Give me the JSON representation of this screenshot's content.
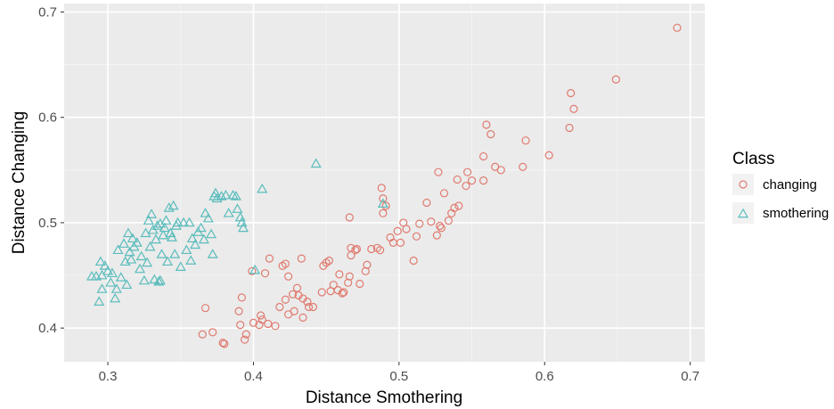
{
  "chart_data": {
    "type": "scatter",
    "xlabel": "Distance Smothering",
    "ylabel": "Distance Changing",
    "xlim": [
      0.27,
      0.71
    ],
    "ylim": [
      0.368,
      0.708
    ],
    "x_ticks": [
      0.3,
      0.4,
      0.5,
      0.6,
      0.7
    ],
    "y_ticks": [
      0.4,
      0.5,
      0.6,
      0.7
    ],
    "x_tick_labels": [
      "0.3",
      "0.4",
      "0.5",
      "0.6",
      "0.7"
    ],
    "y_tick_labels": [
      "0.4",
      "0.5",
      "0.6",
      "0.7"
    ],
    "grid": true,
    "panel_background": "#ebebeb",
    "legend": {
      "title": "Class",
      "position": "right"
    },
    "series": [
      {
        "name": "changing",
        "marker": "circle",
        "color": "#e07b70",
        "points": [
          [
            0.367,
            0.419
          ],
          [
            0.365,
            0.394
          ],
          [
            0.372,
            0.396
          ],
          [
            0.379,
            0.386
          ],
          [
            0.38,
            0.385
          ],
          [
            0.39,
            0.416
          ],
          [
            0.391,
            0.403
          ],
          [
            0.392,
            0.429
          ],
          [
            0.394,
            0.389
          ],
          [
            0.395,
            0.394
          ],
          [
            0.399,
            0.454
          ],
          [
            0.4,
            0.405
          ],
          [
            0.404,
            0.403
          ],
          [
            0.405,
            0.412
          ],
          [
            0.406,
            0.408
          ],
          [
            0.408,
            0.452
          ],
          [
            0.41,
            0.404
          ],
          [
            0.411,
            0.466
          ],
          [
            0.415,
            0.402
          ],
          [
            0.418,
            0.42
          ],
          [
            0.42,
            0.459
          ],
          [
            0.422,
            0.427
          ],
          [
            0.422,
            0.461
          ],
          [
            0.424,
            0.449
          ],
          [
            0.424,
            0.413
          ],
          [
            0.427,
            0.432
          ],
          [
            0.428,
            0.416
          ],
          [
            0.43,
            0.438
          ],
          [
            0.431,
            0.431
          ],
          [
            0.433,
            0.466
          ],
          [
            0.434,
            0.428
          ],
          [
            0.434,
            0.41
          ],
          [
            0.437,
            0.425
          ],
          [
            0.438,
            0.42
          ],
          [
            0.441,
            0.42
          ],
          [
            0.447,
            0.434
          ],
          [
            0.448,
            0.459
          ],
          [
            0.45,
            0.462
          ],
          [
            0.452,
            0.464
          ],
          [
            0.453,
            0.435
          ],
          [
            0.455,
            0.441
          ],
          [
            0.458,
            0.436
          ],
          [
            0.459,
            0.451
          ],
          [
            0.461,
            0.433
          ],
          [
            0.462,
            0.434
          ],
          [
            0.465,
            0.443
          ],
          [
            0.466,
            0.449
          ],
          [
            0.466,
            0.505
          ],
          [
            0.467,
            0.469
          ],
          [
            0.467,
            0.476
          ],
          [
            0.47,
            0.474
          ],
          [
            0.471,
            0.475
          ],
          [
            0.473,
            0.442
          ],
          [
            0.477,
            0.454
          ],
          [
            0.478,
            0.46
          ],
          [
            0.481,
            0.475
          ],
          [
            0.485,
            0.476
          ],
          [
            0.487,
            0.474
          ],
          [
            0.488,
            0.533
          ],
          [
            0.489,
            0.523
          ],
          [
            0.489,
            0.509
          ],
          [
            0.491,
            0.516
          ],
          [
            0.494,
            0.486
          ],
          [
            0.496,
            0.481
          ],
          [
            0.499,
            0.492
          ],
          [
            0.501,
            0.481
          ],
          [
            0.503,
            0.5
          ],
          [
            0.505,
            0.494
          ],
          [
            0.51,
            0.464
          ],
          [
            0.512,
            0.487
          ],
          [
            0.514,
            0.499
          ],
          [
            0.519,
            0.519
          ],
          [
            0.522,
            0.501
          ],
          [
            0.526,
            0.488
          ],
          [
            0.527,
            0.548
          ],
          [
            0.528,
            0.497
          ],
          [
            0.529,
            0.495
          ],
          [
            0.531,
            0.528
          ],
          [
            0.534,
            0.502
          ],
          [
            0.536,
            0.509
          ],
          [
            0.538,
            0.514
          ],
          [
            0.54,
            0.541
          ],
          [
            0.541,
            0.516
          ],
          [
            0.546,
            0.535
          ],
          [
            0.547,
            0.548
          ],
          [
            0.55,
            0.54
          ],
          [
            0.558,
            0.563
          ],
          [
            0.558,
            0.54
          ],
          [
            0.56,
            0.593
          ],
          [
            0.563,
            0.584
          ],
          [
            0.566,
            0.553
          ],
          [
            0.57,
            0.55
          ],
          [
            0.585,
            0.553
          ],
          [
            0.587,
            0.578
          ],
          [
            0.603,
            0.564
          ],
          [
            0.617,
            0.59
          ],
          [
            0.618,
            0.623
          ],
          [
            0.62,
            0.608
          ],
          [
            0.649,
            0.636
          ],
          [
            0.691,
            0.685
          ]
        ]
      },
      {
        "name": "smothering",
        "marker": "triangle",
        "color": "#5bbcbc",
        "points": [
          [
            0.289,
            0.449
          ],
          [
            0.292,
            0.449
          ],
          [
            0.294,
            0.425
          ],
          [
            0.295,
            0.463
          ],
          [
            0.296,
            0.45
          ],
          [
            0.296,
            0.437
          ],
          [
            0.298,
            0.459
          ],
          [
            0.3,
            0.454
          ],
          [
            0.302,
            0.443
          ],
          [
            0.303,
            0.452
          ],
          [
            0.305,
            0.428
          ],
          [
            0.306,
            0.437
          ],
          [
            0.307,
            0.474
          ],
          [
            0.309,
            0.448
          ],
          [
            0.311,
            0.48
          ],
          [
            0.312,
            0.463
          ],
          [
            0.313,
            0.441
          ],
          [
            0.314,
            0.49
          ],
          [
            0.315,
            0.472
          ],
          [
            0.316,
            0.465
          ],
          [
            0.317,
            0.485
          ],
          [
            0.318,
            0.477
          ],
          [
            0.32,
            0.481
          ],
          [
            0.322,
            0.456
          ],
          [
            0.323,
            0.468
          ],
          [
            0.325,
            0.445
          ],
          [
            0.326,
            0.49
          ],
          [
            0.327,
            0.462
          ],
          [
            0.328,
            0.502
          ],
          [
            0.329,
            0.477
          ],
          [
            0.33,
            0.508
          ],
          [
            0.331,
            0.493
          ],
          [
            0.332,
            0.446
          ],
          [
            0.333,
            0.484
          ],
          [
            0.334,
            0.497
          ],
          [
            0.335,
            0.444
          ],
          [
            0.336,
            0.499
          ],
          [
            0.336,
            0.445
          ],
          [
            0.337,
            0.47
          ],
          [
            0.338,
            0.488
          ],
          [
            0.339,
            0.495
          ],
          [
            0.34,
            0.502
          ],
          [
            0.341,
            0.463
          ],
          [
            0.342,
            0.514
          ],
          [
            0.343,
            0.49
          ],
          [
            0.344,
            0.486
          ],
          [
            0.345,
            0.516
          ],
          [
            0.346,
            0.47
          ],
          [
            0.347,
            0.497
          ],
          [
            0.348,
            0.5
          ],
          [
            0.35,
            0.458
          ],
          [
            0.352,
            0.5
          ],
          [
            0.354,
            0.474
          ],
          [
            0.356,
            0.5
          ],
          [
            0.357,
            0.464
          ],
          [
            0.358,
            0.485
          ],
          [
            0.36,
            0.479
          ],
          [
            0.362,
            0.491
          ],
          [
            0.364,
            0.495
          ],
          [
            0.366,
            0.484
          ],
          [
            0.367,
            0.509
          ],
          [
            0.369,
            0.504
          ],
          [
            0.371,
            0.489
          ],
          [
            0.372,
            0.47
          ],
          [
            0.373,
            0.525
          ],
          [
            0.374,
            0.528
          ],
          [
            0.375,
            0.523
          ],
          [
            0.378,
            0.525
          ],
          [
            0.381,
            0.526
          ],
          [
            0.383,
            0.509
          ],
          [
            0.386,
            0.526
          ],
          [
            0.388,
            0.525
          ],
          [
            0.389,
            0.513
          ],
          [
            0.391,
            0.505
          ],
          [
            0.392,
            0.5
          ],
          [
            0.393,
            0.495
          ],
          [
            0.401,
            0.455
          ],
          [
            0.406,
            0.532
          ],
          [
            0.443,
            0.556
          ],
          [
            0.489,
            0.518
          ]
        ]
      }
    ]
  }
}
